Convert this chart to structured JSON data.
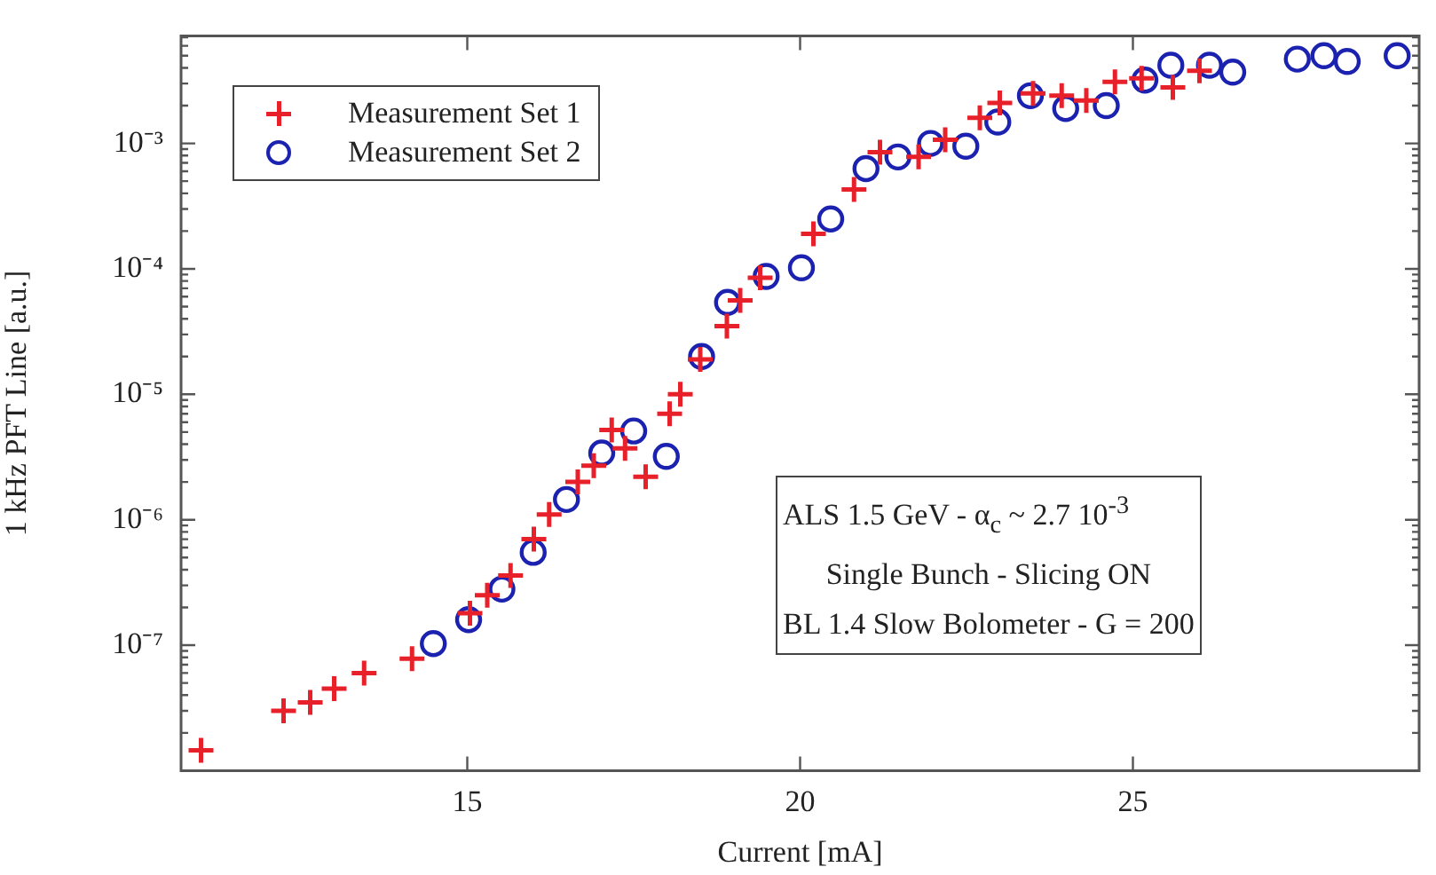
{
  "chart_data": {
    "type": "scatter",
    "xlabel": "Current [mA]",
    "ylabel": "1 kHz PFT Line [a.u.]",
    "log": "y",
    "grid": false,
    "legend": "top left",
    "xlim": [
      10.7,
      29.3
    ],
    "xticks": [
      15,
      20,
      25
    ],
    "ylim": [
      1e-08,
      0.0072
    ],
    "yticks": [
      {
        "value": 1e-07,
        "label": "10⁻⁷"
      },
      {
        "value": 1e-06,
        "label": "10⁻⁶"
      },
      {
        "value": 1e-05,
        "label": "10⁻⁵"
      },
      {
        "value": 0.0001,
        "label": "10⁻⁴"
      },
      {
        "value": 0.001,
        "label": "10⁻³"
      }
    ],
    "annotations": [
      "ALS 1.5 GeV - α$_{c}$ ~ 2.7 10$^{-3}$",
      "Single Bunch - Slicing ON",
      "BL 1.4 Slow Bolometer - G = 200"
    ],
    "series": [
      {
        "name": "Measurement Set 1",
        "color": "#e8202a",
        "marker": "cross",
        "x": [
          11.0,
          12.24,
          12.64,
          13.0,
          13.45,
          14.17,
          15.04,
          15.3,
          15.65,
          16.0,
          16.23,
          16.66,
          16.9,
          17.17,
          17.37,
          17.68,
          18.04,
          18.2,
          18.5,
          18.9,
          19.1,
          19.4,
          20.2,
          20.81,
          21.2,
          21.78,
          22.18,
          22.7,
          23.0,
          23.5,
          23.93,
          24.3,
          24.73,
          25.13,
          25.6,
          26.0
        ],
        "values": [
          1.45e-08,
          3e-08,
          3.5e-08,
          4.5e-08,
          6e-08,
          7.8e-08,
          1.8e-07,
          2.5e-07,
          3.6e-07,
          7e-07,
          1.1e-06,
          2e-06,
          2.7e-06,
          5.2e-06,
          3.7e-06,
          2.2e-06,
          7e-06,
          1e-05,
          1.9e-05,
          3.5e-05,
          5.6e-05,
          8.5e-05,
          0.00019,
          0.00043,
          0.00085,
          0.00078,
          0.00107,
          0.0016,
          0.0021,
          0.0025,
          0.0024,
          0.0022,
          0.0031,
          0.0033,
          0.0028,
          0.0038
        ]
      },
      {
        "name": "Measurement Set 2",
        "color": "#1c22b0",
        "marker": "circle",
        "x": [
          14.49,
          15.02,
          15.52,
          15.99,
          16.49,
          17.02,
          17.5,
          17.99,
          18.52,
          18.91,
          19.49,
          20.02,
          20.46,
          20.99,
          21.47,
          21.96,
          22.49,
          22.97,
          23.46,
          23.99,
          24.6,
          25.18,
          25.57,
          26.15,
          26.5,
          27.47,
          27.87,
          28.22,
          28.97
        ],
        "values": [
          1.03e-07,
          1.6e-07,
          2.8e-07,
          5.5e-07,
          1.45e-06,
          3.4e-06,
          5.1e-06,
          3.2e-06,
          2e-05,
          5.4e-05,
          8.7e-05,
          0.000102,
          0.00025,
          0.00063,
          0.00078,
          0.001,
          0.00095,
          0.00148,
          0.0024,
          0.0019,
          0.002,
          0.0032,
          0.0042,
          0.0042,
          0.0037,
          0.0047,
          0.005,
          0.0045,
          0.005
        ]
      }
    ]
  }
}
